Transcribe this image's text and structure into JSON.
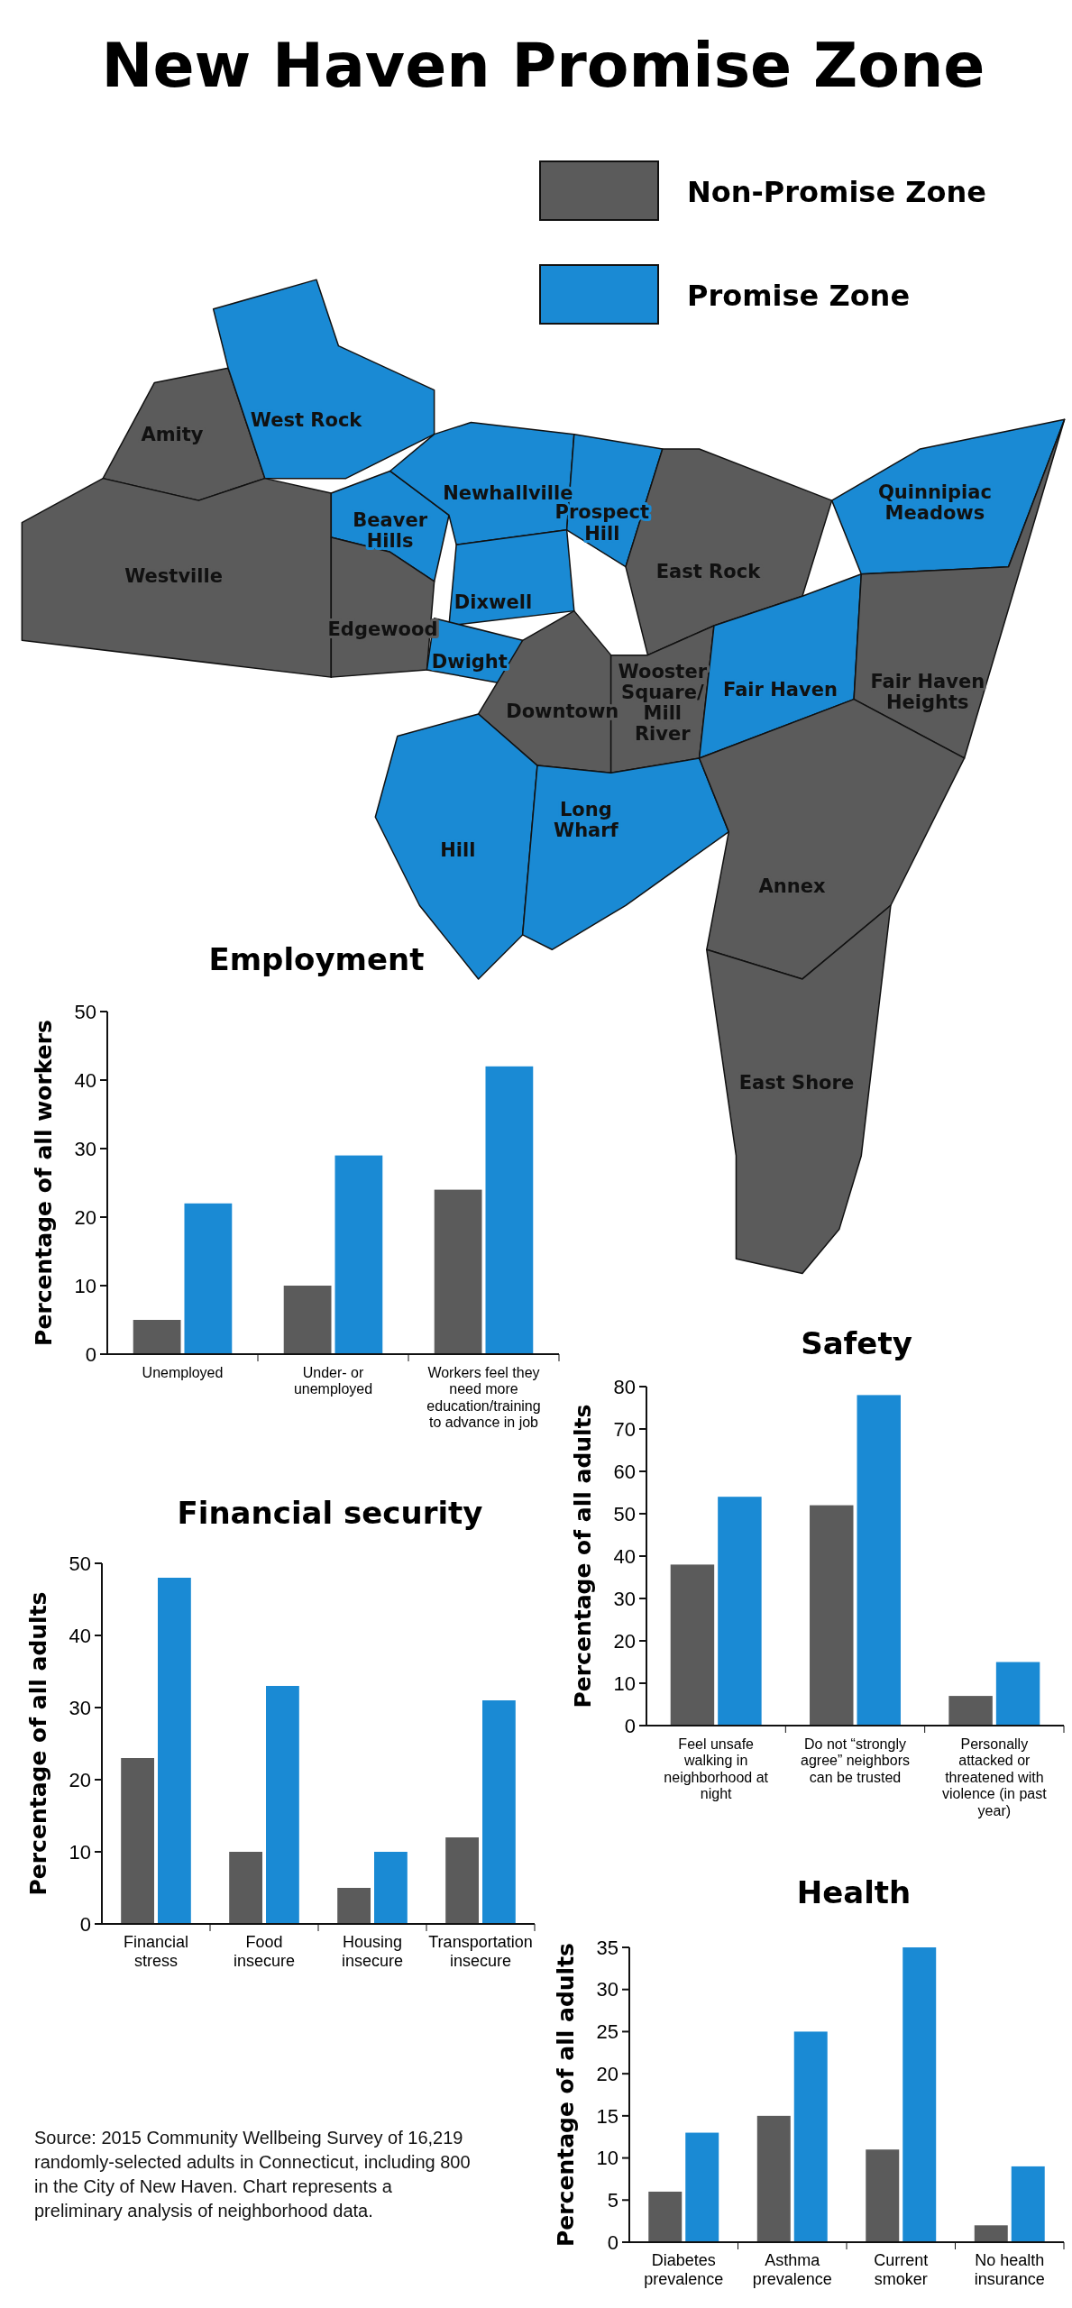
{
  "chart_data": [
    {
      "type": "other",
      "title": "New Haven Promise Zone",
      "annotations": [
        "Amity",
        "West Rock",
        "Westville",
        "Beaver Hills",
        "Edgewood",
        "Newhallville",
        "Prospect Hill",
        "Dixwell",
        "Dwight",
        "Downtown",
        "East Rock",
        "Wooster Square/ Mill River",
        "Quinnipiac Meadows",
        "Fair Haven",
        "Fair Haven Heights",
        "Hill",
        "Long Wharf",
        "Annex",
        "East Shore",
        "Source: 2015 Community Wellbeing Survey of 16,219 randomly-selected adults in Connecticut, including 800 in the City of New Haven. Chart represents a preliminary analysis of neighborhood data."
      ]
    },
    {
      "type": "bar",
      "title": "Employment",
      "ylabel": "Percentage of all workers",
      "categories": [
        "Unemployed",
        "Under- or unemployed",
        "Workers feel they need more education/training to advance in job"
      ],
      "ylim": [
        0,
        50
      ],
      "yticks": [
        0,
        10,
        20,
        30,
        40,
        50
      ],
      "legend": "top",
      "series": [
        {
          "name": "Non-Promise Zone",
          "color": "#5b5b5b",
          "values": [
            5,
            10,
            24
          ]
        },
        {
          "name": "Promise Zone",
          "color": "#1a8ad4",
          "values": [
            22,
            29,
            42
          ]
        }
      ]
    },
    {
      "type": "bar",
      "title": "Safety",
      "ylabel": "Percentage of all adults",
      "categories": [
        "Feel unsafe walking in neighborhood at night",
        "Do not “strongly agree” neighbors can be trusted",
        "Personally attacked or threatened with violence (in past year)"
      ],
      "ylim": [
        0,
        80
      ],
      "yticks": [
        0,
        10,
        20,
        30,
        40,
        50,
        60,
        70,
        80
      ],
      "series": [
        {
          "color": "#5b5b5b",
          "values": [
            38,
            52,
            7
          ]
        },
        {
          "color": "#1a8ad4",
          "values": [
            54,
            78,
            15
          ]
        }
      ]
    },
    {
      "type": "bar",
      "title": "Financial security",
      "ylabel": "Percentage of all adults",
      "categories": [
        "Financial stress",
        "Food insecure",
        "Housing insecure",
        "Transportation insecure"
      ],
      "ylim": [
        0,
        50
      ],
      "yticks": [
        0,
        10,
        20,
        30,
        40,
        50
      ],
      "series": [
        {
          "color": "#5b5b5b",
          "values": [
            23,
            10,
            5,
            12
          ]
        },
        {
          "color": "#1a8ad4",
          "values": [
            48,
            33,
            10,
            31
          ]
        }
      ]
    },
    {
      "type": "bar",
      "title": "Health",
      "ylabel": "Percentage of all adults",
      "categories": [
        "Diabetes prevalence",
        "Asthma prevalence",
        "Current smoker",
        "No health insurance"
      ],
      "ylim": [
        0,
        35
      ],
      "yticks": [
        0,
        5,
        10,
        15,
        20,
        25,
        30,
        35
      ],
      "series": [
        {
          "color": "#5b5b5b",
          "values": [
            6,
            15,
            11,
            2
          ]
        },
        {
          "color": "#1a8ad4",
          "values": [
            13,
            25,
            35,
            9
          ]
        }
      ]
    }
  ]
}
